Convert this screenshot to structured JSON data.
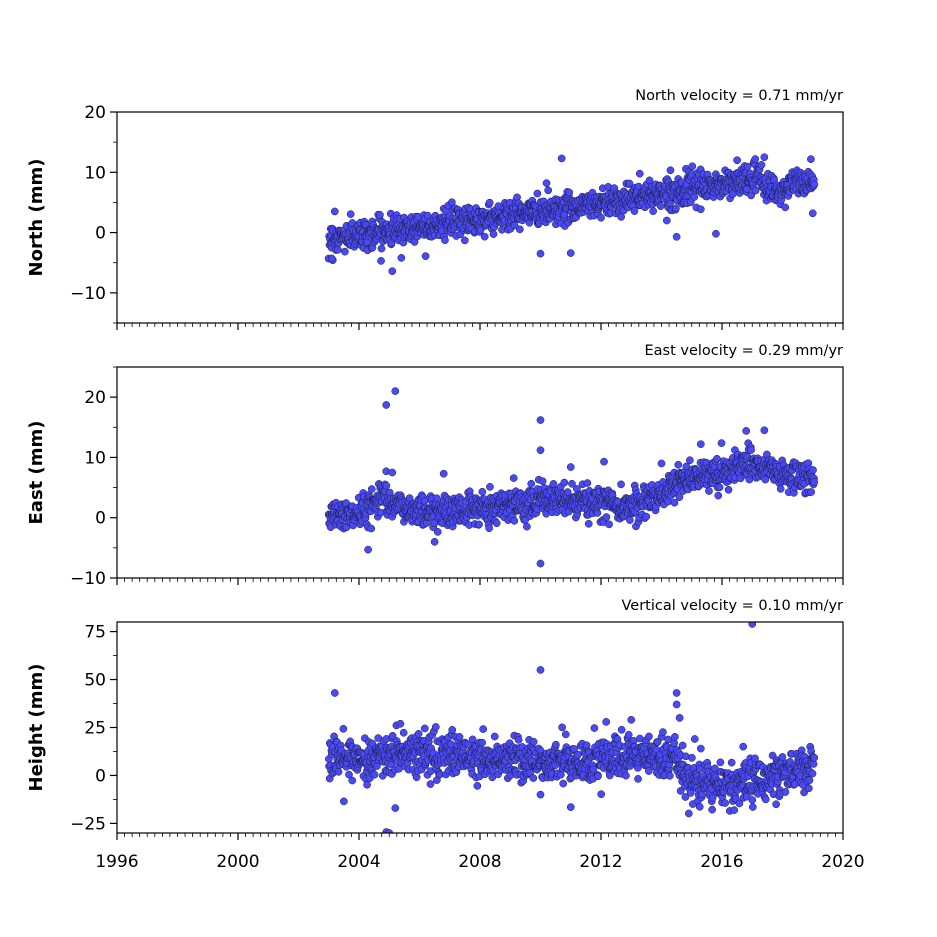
{
  "chart_data": [
    {
      "type": "scatter",
      "title": "North velocity = 0.71 mm/yr",
      "ylabel": "North (mm)",
      "xlim": [
        1996,
        2020
      ],
      "ylim": [
        -15,
        20
      ],
      "yticks": [
        -10,
        0,
        10,
        20
      ],
      "ytick_labels": [
        "−10",
        "0",
        "10",
        "20"
      ],
      "x_range": [
        2003.0,
        2019.05
      ],
      "trend": [
        [
          2003.0,
          -1.0
        ],
        [
          2006.0,
          1.0
        ],
        [
          2010.0,
          3.5
        ],
        [
          2012.0,
          5.0
        ],
        [
          2014.0,
          6.5
        ],
        [
          2016.0,
          8.0
        ],
        [
          2017.2,
          9.0
        ],
        [
          2017.8,
          6.5
        ],
        [
          2018.5,
          8.5
        ],
        [
          2019.0,
          8.0
        ]
      ],
      "scatter_sd": 1.2,
      "outliers": [
        [
          2003.2,
          3.5
        ],
        [
          2003.1,
          -4.3
        ],
        [
          2005.1,
          -6.4
        ],
        [
          2005.4,
          -4.2
        ],
        [
          2010.7,
          12.3
        ],
        [
          2010.0,
          -3.5
        ],
        [
          2011.0,
          -3.4
        ],
        [
          2010.2,
          8.2
        ],
        [
          2014.5,
          -0.7
        ],
        [
          2015.8,
          -0.2
        ],
        [
          2016.5,
          12.0
        ],
        [
          2017.1,
          12.2
        ],
        [
          2017.4,
          12.5
        ],
        [
          2019.0,
          3.2
        ]
      ],
      "color": "#4a4af5"
    },
    {
      "type": "scatter",
      "title": "East velocity = 0.29 mm/yr",
      "ylabel": "East (mm)",
      "xlim": [
        1996,
        2020
      ],
      "ylim": [
        -10,
        25
      ],
      "yticks": [
        -10,
        0,
        10,
        20
      ],
      "ytick_labels": [
        "−10",
        "0",
        "10",
        "20"
      ],
      "x_range": [
        2003.0,
        2019.05
      ],
      "trend": [
        [
          2003.0,
          0.5
        ],
        [
          2004.0,
          0.5
        ],
        [
          2004.8,
          4.0
        ],
        [
          2005.4,
          1.5
        ],
        [
          2007.0,
          1.0
        ],
        [
          2010.0,
          3.0
        ],
        [
          2013.0,
          2.0
        ],
        [
          2014.0,
          4.0
        ],
        [
          2015.0,
          7.0
        ],
        [
          2016.0,
          7.5
        ],
        [
          2017.0,
          9.0
        ],
        [
          2018.0,
          7.0
        ],
        [
          2019.0,
          6.5
        ]
      ],
      "scatter_sd": 1.3,
      "outliers": [
        [
          2004.9,
          18.7
        ],
        [
          2005.2,
          21.0
        ],
        [
          2004.9,
          7.7
        ],
        [
          2005.1,
          7.5
        ],
        [
          2004.3,
          -5.3
        ],
        [
          2006.5,
          -4.0
        ],
        [
          2006.8,
          7.3
        ],
        [
          2010.0,
          16.2
        ],
        [
          2010.0,
          11.2
        ],
        [
          2010.0,
          -7.6
        ],
        [
          2011.0,
          8.4
        ],
        [
          2012.1,
          9.3
        ],
        [
          2014.0,
          9.0
        ],
        [
          2015.3,
          12.2
        ],
        [
          2016.8,
          14.4
        ],
        [
          2017.4,
          14.5
        ]
      ],
      "color": "#4a4af5"
    },
    {
      "type": "scatter",
      "title": "Vertical velocity = 0.10 mm/yr",
      "ylabel": "Height (mm)",
      "xlabel": "",
      "xlim": [
        1996,
        2020
      ],
      "ylim": [
        -30,
        80
      ],
      "yticks": [
        -25,
        0,
        25,
        50,
        75
      ],
      "ytick_labels": [
        "−25",
        "0",
        "25",
        "50",
        "75"
      ],
      "xticks": [
        1996,
        2000,
        2004,
        2008,
        2012,
        2016,
        2020
      ],
      "xtick_labels": [
        "1996",
        "2000",
        "2004",
        "2008",
        "2012",
        "2016",
        "2020"
      ],
      "x_range": [
        2003.0,
        2019.05
      ],
      "trend": [
        [
          2003.0,
          8.0
        ],
        [
          2006.0,
          12.0
        ],
        [
          2008.0,
          9.0
        ],
        [
          2011.0,
          7.0
        ],
        [
          2014.5,
          10.0
        ],
        [
          2014.8,
          -3.0
        ],
        [
          2016.0,
          -5.0
        ],
        [
          2017.0,
          -3.0
        ],
        [
          2019.0,
          5.0
        ]
      ],
      "scatter_sd": 5.5,
      "outliers": [
        [
          2003.2,
          43.0
        ],
        [
          2004.9,
          -29.5
        ],
        [
          2005.0,
          -30.0
        ],
        [
          2003.5,
          -13.5
        ],
        [
          2005.2,
          -17.0
        ],
        [
          2010.0,
          55.0
        ],
        [
          2010.0,
          -10.0
        ],
        [
          2011.0,
          -16.5
        ],
        [
          2013.0,
          29.0
        ],
        [
          2014.5,
          43.0
        ],
        [
          2014.5,
          37.0
        ],
        [
          2014.6,
          30.0
        ],
        [
          2015.1,
          19.0
        ],
        [
          2015.3,
          14.0
        ],
        [
          2016.7,
          15.0
        ],
        [
          2017.0,
          79.0
        ]
      ],
      "color": "#4a4af5"
    }
  ]
}
